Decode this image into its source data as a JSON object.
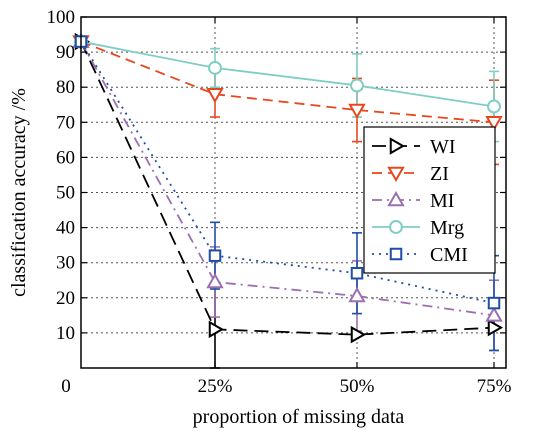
{
  "chart_data": {
    "type": "line",
    "xlabel": "proportion of missing data",
    "ylabel": "classification accuracy /%",
    "ylim": [
      0,
      100
    ],
    "grid": true,
    "legend_position": "center-right",
    "x_ticks": [
      "0",
      "25%",
      "50%",
      "75%"
    ],
    "y_ticks": [
      "10",
      "20",
      "30",
      "40",
      "50",
      "60",
      "70",
      "80",
      "90",
      "100"
    ],
    "x": [
      0,
      25,
      50,
      75
    ],
    "series": [
      {
        "name": "WI",
        "color": "#000000",
        "marker": "triangle-right",
        "dash": "long-dash",
        "values": [
          93,
          11,
          9.5,
          11.5
        ],
        "error": [
          null,
          12,
          0,
          0
        ]
      },
      {
        "name": "ZI",
        "color": "#e8471e",
        "marker": "triangle-down",
        "dash": "dash",
        "values": [
          93,
          78,
          73.5,
          70
        ],
        "error": [
          null,
          6.5,
          9,
          12
        ]
      },
      {
        "name": "MI",
        "color": "#9c6fb0",
        "marker": "triangle-up",
        "dash": "dash-dot",
        "values": [
          93,
          24.5,
          20.5,
          15
        ],
        "error": [
          null,
          10,
          10,
          10
        ]
      },
      {
        "name": "Mrg",
        "color": "#7fcdc4",
        "marker": "circle",
        "dash": "solid",
        "values": [
          93,
          85.5,
          80.5,
          74.5
        ],
        "error": [
          null,
          5.5,
          9,
          10
        ]
      },
      {
        "name": "CMI",
        "color": "#1f4ea6",
        "marker": "square",
        "dash": "dot",
        "values": [
          93,
          32,
          27,
          18.5
        ],
        "error": [
          null,
          9.5,
          11.5,
          13.5
        ]
      }
    ]
  }
}
